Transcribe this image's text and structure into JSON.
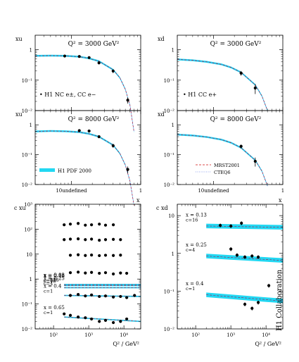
{
  "collaboration": "H1 Collaboration",
  "legend": {
    "data_nc": "• H1 NC e±, CC e−",
    "data_cc": "• H1 CC e+",
    "h1fit": "H1 PDF 2000",
    "mrst": "MRST2001",
    "cteq": "CTEQ6"
  },
  "colors": {
    "band": "#22d8f2",
    "mrst": "#d01010",
    "cteq": "#3050e0",
    "points": "#000000"
  },
  "chart_data": [
    {
      "type": "line",
      "panel": "xu_q2_3000",
      "title": "Q² = 3000 GeV²",
      "ylabel": "xu",
      "xlabel": "",
      "xlim": [
        0.03,
        1.0
      ],
      "ylim": [
        0.01,
        3
      ],
      "log_x": true,
      "log_y": true,
      "points": [
        [
          0.08,
          0.62
        ],
        [
          0.13,
          0.6
        ],
        [
          0.18,
          0.55
        ],
        [
          0.25,
          0.37
        ],
        [
          0.4,
          0.2
        ],
        [
          0.65,
          0.022
        ]
      ],
      "errors": [
        0.06,
        0.05,
        0.05,
        0.04,
        0.03,
        0.005
      ],
      "curve_x": [
        0.03,
        0.05,
        0.08,
        0.13,
        0.18,
        0.25,
        0.4,
        0.5,
        0.6,
        0.7,
        0.8
      ],
      "curve_y": [
        0.63,
        0.64,
        0.63,
        0.59,
        0.52,
        0.42,
        0.22,
        0.12,
        0.05,
        0.015,
        0.002
      ]
    },
    {
      "type": "line",
      "panel": "xd_q2_3000",
      "title": "Q² = 3000 GeV²",
      "ylabel": "xd",
      "xlabel": "",
      "xlim": [
        0.03,
        1.0
      ],
      "ylim": [
        0.01,
        3
      ],
      "log_x": true,
      "log_y": true,
      "points": [
        [
          0.25,
          0.17
        ],
        [
          0.4,
          0.055
        ]
      ],
      "errors": [
        0.03,
        0.02
      ],
      "curve_x": [
        0.03,
        0.05,
        0.08,
        0.13,
        0.18,
        0.25,
        0.4,
        0.5,
        0.6
      ],
      "curve_y": [
        0.48,
        0.45,
        0.4,
        0.33,
        0.26,
        0.18,
        0.07,
        0.03,
        0.01
      ]
    },
    {
      "type": "line",
      "panel": "xu_q2_8000",
      "title": "Q² = 8000 GeV²",
      "ylabel": "xu",
      "xlabel": "x",
      "xlim": [
        0.03,
        1.0
      ],
      "ylim": [
        0.01,
        3
      ],
      "log_x": true,
      "log_y": true,
      "points": [
        [
          0.13,
          0.64
        ],
        [
          0.18,
          0.62
        ],
        [
          0.25,
          0.4
        ],
        [
          0.4,
          0.2
        ],
        [
          0.65,
          0.032
        ]
      ],
      "errors": [
        0.06,
        0.05,
        0.04,
        0.03,
        0.008
      ],
      "curve_x": [
        0.03,
        0.05,
        0.08,
        0.13,
        0.18,
        0.25,
        0.4,
        0.5,
        0.6,
        0.7,
        0.8
      ],
      "curve_y": [
        0.6,
        0.62,
        0.61,
        0.57,
        0.5,
        0.4,
        0.21,
        0.11,
        0.045,
        0.013,
        0.002
      ]
    },
    {
      "type": "line",
      "panel": "xd_q2_8000",
      "title": "Q² = 8000 GeV²",
      "ylabel": "xd",
      "xlabel": "x",
      "xlim": [
        0.03,
        1.0
      ],
      "ylim": [
        0.01,
        3
      ],
      "log_x": true,
      "log_y": true,
      "points": [
        [
          0.25,
          0.19
        ],
        [
          0.4,
          0.06
        ]
      ],
      "errors": [
        0.03,
        0.02
      ],
      "curve_x": [
        0.03,
        0.05,
        0.08,
        0.13,
        0.18,
        0.25,
        0.4,
        0.5,
        0.6
      ],
      "curve_y": [
        0.47,
        0.44,
        0.39,
        0.32,
        0.25,
        0.17,
        0.065,
        0.028,
        0.009
      ]
    },
    {
      "type": "scatter",
      "panel": "cxu_vs_q2",
      "ylabel": "c xu",
      "xlabel": "Q² / GeV²",
      "xlim": [
        30,
        30000
      ],
      "ylim": [
        0.01,
        1000
      ],
      "log_x": true,
      "log_y": true,
      "series": [
        {
          "label_x": "x = 0.08",
          "label_c": "c=256",
          "curve": [
            0.6,
            0.6
          ],
          "points": [
            [
              200,
              150
            ],
            [
              300,
              160
            ],
            [
              500,
              170
            ],
            [
              800,
              145
            ],
            [
              1200,
              150
            ],
            [
              2000,
              160
            ],
            [
              3000,
              145
            ],
            [
              5000,
              150
            ]
          ]
        },
        {
          "label_x": "x = 0.13",
          "label_c": "c=64",
          "curve": [
            0.6,
            0.6
          ],
          "points": [
            [
              200,
              38
            ],
            [
              300,
              40
            ],
            [
              500,
              41
            ],
            [
              800,
              38
            ],
            [
              1200,
              40
            ],
            [
              2000,
              36
            ],
            [
              3000,
              38
            ],
            [
              5000,
              39
            ],
            [
              8000,
              38
            ]
          ]
        },
        {
          "label_x": "x = 0.18",
          "label_c": "c=16",
          "curve": [
            0.55,
            0.55
          ],
          "points": [
            [
              300,
              9
            ],
            [
              500,
              9.4
            ],
            [
              800,
              8.8
            ],
            [
              1200,
              9.2
            ],
            [
              2000,
              8.7
            ],
            [
              3000,
              9
            ],
            [
              5000,
              8.8
            ],
            [
              8000,
              9.1
            ]
          ]
        },
        {
          "label_x": "x = 0.25",
          "label_c": "c=4",
          "curve": [
            0.45,
            0.45
          ],
          "points": [
            [
              300,
              1.8
            ],
            [
              500,
              1.9
            ],
            [
              800,
              1.75
            ],
            [
              1200,
              1.85
            ],
            [
              2000,
              1.7
            ],
            [
              3000,
              1.8
            ],
            [
              5000,
              1.6
            ],
            [
              8000,
              1.75
            ],
            [
              12000,
              1.7
            ]
          ]
        },
        {
          "label_x": "x = 0.4",
          "label_c": "c=1",
          "curve": [
            0.22,
            0.2
          ],
          "points": [
            [
              300,
              0.22
            ],
            [
              500,
              0.24
            ],
            [
              800,
              0.21
            ],
            [
              1200,
              0.23
            ],
            [
              2000,
              0.2
            ],
            [
              3000,
              0.21
            ],
            [
              5000,
              0.19
            ],
            [
              8000,
              0.2
            ],
            [
              12000,
              0.18
            ],
            [
              20000,
              0.22
            ]
          ]
        },
        {
          "label_x": "x = 0.65",
          "label_c": "c=1",
          "curve": [
            0.03,
            0.02
          ],
          "points": [
            [
              200,
              0.04
            ],
            [
              300,
              0.035
            ],
            [
              500,
              0.03
            ],
            [
              800,
              0.028
            ],
            [
              1200,
              0.025
            ],
            [
              2000,
              0.02
            ],
            [
              3000,
              0.022
            ],
            [
              5000,
              0.018
            ],
            [
              8000,
              0.02
            ],
            [
              12000,
              0.025
            ]
          ]
        }
      ]
    },
    {
      "type": "scatter",
      "panel": "cxd_vs_q2",
      "ylabel": "c xd",
      "xlabel": "Q² / GeV²",
      "xlim": [
        30,
        30000
      ],
      "ylim": [
        0.01,
        20
      ],
      "log_x": true,
      "log_y": true,
      "series": [
        {
          "label_x": "x = 0.13",
          "label_c": "c=16",
          "curve": [
            5.3,
            4.9
          ],
          "points": [
            [
              500,
              5.5
            ],
            [
              1000,
              5.3
            ],
            [
              2000,
              6.3
            ]
          ]
        },
        {
          "label_x": "x = 0.25",
          "label_c": "c=4",
          "curve": [
            0.85,
            0.65
          ],
          "points": [
            [
              1000,
              1.3
            ],
            [
              1500,
              0.9
            ],
            [
              2500,
              0.8
            ],
            [
              4000,
              0.85
            ],
            [
              6000,
              0.8
            ]
          ]
        },
        {
          "label_x": "x = 0.4",
          "label_c": "c=1",
          "curve": [
            0.08,
            0.055
          ],
          "points": [
            [
              2500,
              0.045
            ],
            [
              4000,
              0.035
            ],
            [
              6000,
              0.05
            ],
            [
              12000,
              0.14
            ]
          ]
        }
      ]
    }
  ]
}
